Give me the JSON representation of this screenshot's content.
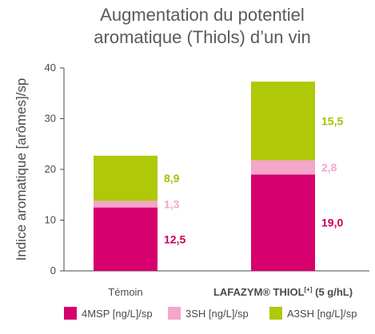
{
  "chart_data": {
    "type": "bar",
    "stacked": true,
    "title_lines": [
      "Augmentation du potentiel",
      "aromatique (Thiols) d’un vin"
    ],
    "ylabel": "Indice aromatique [arômes]/sp",
    "ylim": [
      0,
      40
    ],
    "yticks": [
      0,
      10,
      20,
      30,
      40
    ],
    "categories": [
      {
        "label": "Témoin"
      },
      {
        "label": "LAFAZYM® THIOL",
        "sup": "[+]",
        "suffix": " (5 g/hL)"
      }
    ],
    "series": [
      {
        "name": "4MSP [ng/L]/sp",
        "color": "#d6006e",
        "values": [
          12.5,
          19.0
        ],
        "value_labels": [
          "12,5",
          "19,0"
        ],
        "label_color": "#c8005f"
      },
      {
        "name": "3SH [ng/L]/sp",
        "color": "#f4a6cb",
        "values": [
          1.3,
          2.8
        ],
        "value_labels": [
          "1,3",
          "2,8"
        ],
        "label_color": "#f4a6cb"
      },
      {
        "name": "A3SH [ng/L]/sp",
        "color": "#afc808",
        "values": [
          8.9,
          15.5
        ],
        "value_labels": [
          "8,9",
          "15,5"
        ],
        "label_color": "#a8c000"
      }
    ],
    "grid": false,
    "legend_position": "bottom"
  }
}
